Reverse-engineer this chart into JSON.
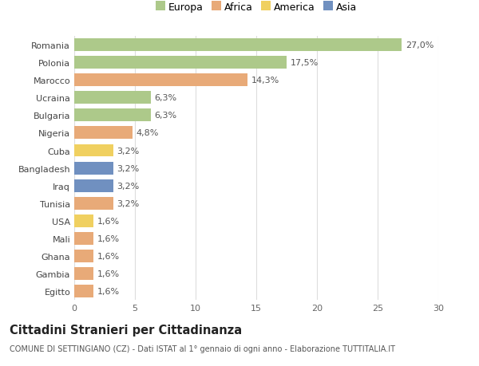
{
  "countries": [
    "Romania",
    "Polonia",
    "Marocco",
    "Ucraina",
    "Bulgaria",
    "Nigeria",
    "Cuba",
    "Bangladesh",
    "Iraq",
    "Tunisia",
    "USA",
    "Mali",
    "Ghana",
    "Gambia",
    "Egitto"
  ],
  "values": [
    27.0,
    17.5,
    14.3,
    6.3,
    6.3,
    4.8,
    3.2,
    3.2,
    3.2,
    3.2,
    1.6,
    1.6,
    1.6,
    1.6,
    1.6
  ],
  "labels": [
    "27,0%",
    "17,5%",
    "14,3%",
    "6,3%",
    "6,3%",
    "4,8%",
    "3,2%",
    "3,2%",
    "3,2%",
    "3,2%",
    "1,6%",
    "1,6%",
    "1,6%",
    "1,6%",
    "1,6%"
  ],
  "continents": [
    "Europa",
    "Europa",
    "Africa",
    "Europa",
    "Europa",
    "Africa",
    "America",
    "Asia",
    "Asia",
    "Africa",
    "America",
    "Africa",
    "Africa",
    "Africa",
    "Africa"
  ],
  "continent_colors": {
    "Europa": "#adc98a",
    "Africa": "#e8aa78",
    "America": "#f0d060",
    "Asia": "#7090c0"
  },
  "legend_order": [
    "Europa",
    "Africa",
    "America",
    "Asia"
  ],
  "xlim": [
    0,
    30
  ],
  "xticks": [
    0,
    5,
    10,
    15,
    20,
    25,
    30
  ],
  "title": "Cittadini Stranieri per Cittadinanza",
  "subtitle": "COMUNE DI SETTINGIANO (CZ) - Dati ISTAT al 1° gennaio di ogni anno - Elaborazione TUTTITALIA.IT",
  "bg_color": "#ffffff",
  "grid_color": "#dddddd",
  "bar_height": 0.72,
  "label_fontsize": 8,
  "tick_fontsize": 8,
  "title_fontsize": 10.5,
  "subtitle_fontsize": 7
}
